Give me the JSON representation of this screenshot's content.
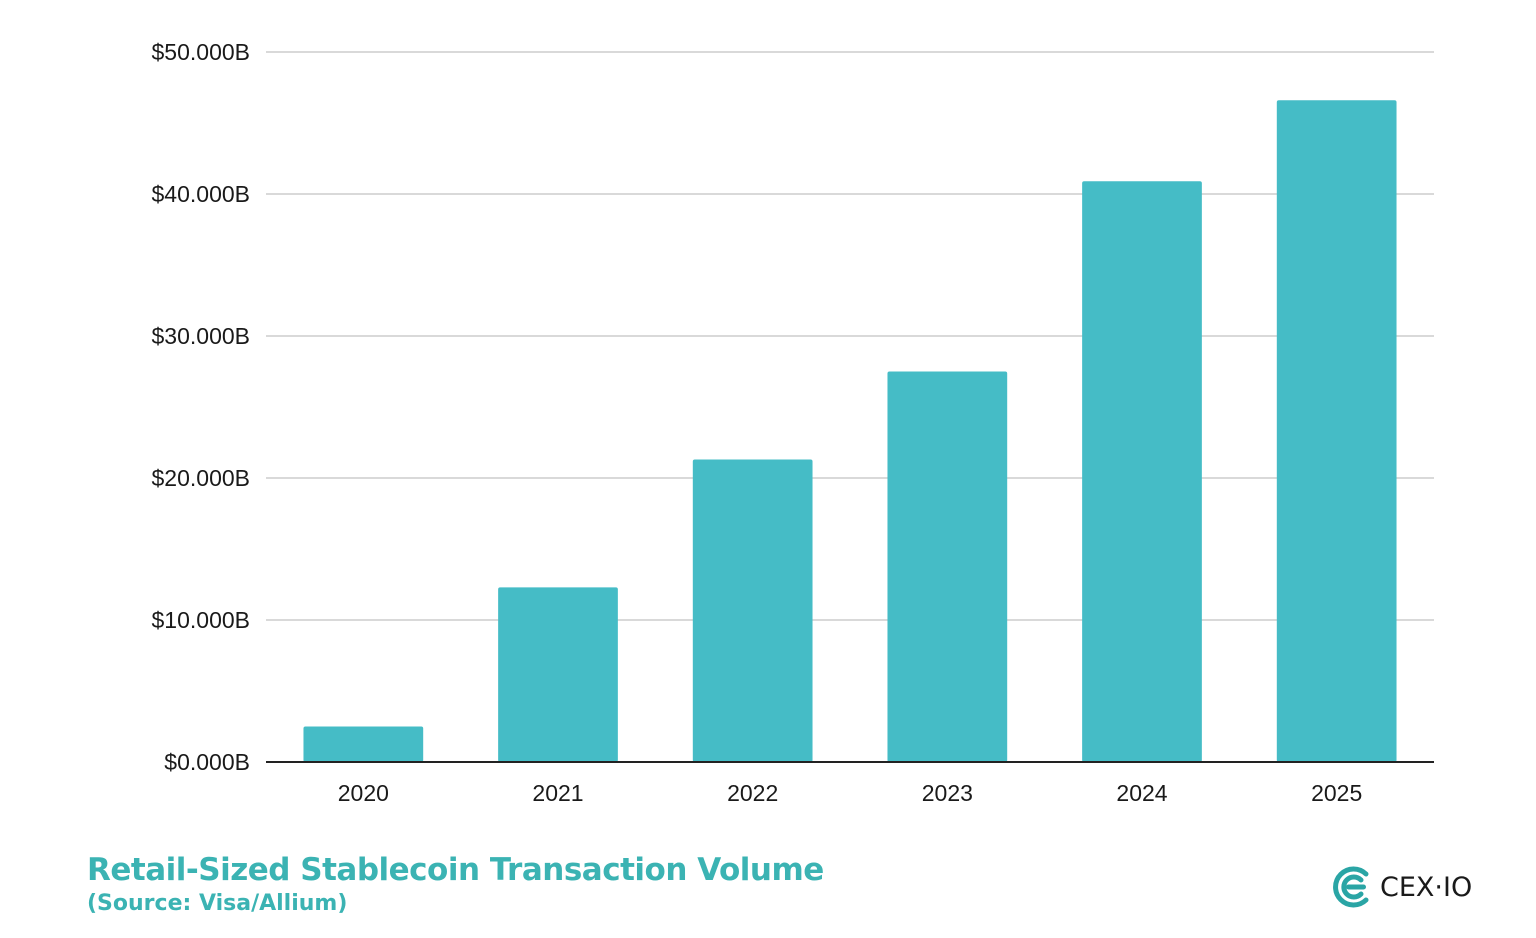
{
  "chart_data": {
    "type": "bar",
    "categories": [
      "2020",
      "2021",
      "2022",
      "2023",
      "2024",
      "2025"
    ],
    "values": [
      2.5,
      12.3,
      21.3,
      27.5,
      40.9,
      46.6
    ],
    "ylim": [
      0,
      50
    ],
    "yticks": [
      {
        "value": 0,
        "label": "$0.000B"
      },
      {
        "value": 10,
        "label": "$10.000B"
      },
      {
        "value": 20,
        "label": "$20.000B"
      },
      {
        "value": 30,
        "label": "$30.000B"
      },
      {
        "value": 40,
        "label": "$40.000B"
      },
      {
        "value": 50,
        "label": "$50.000B"
      }
    ],
    "title": "Retail-Sized Stablecoin Transaction Volume",
    "subtitle": "(Source: Visa/Allium)",
    "xlabel": "",
    "ylabel": "",
    "grid": true,
    "legend": "none"
  },
  "colors": {
    "bar": "#45bcc6",
    "grid": "#d9d9d9",
    "axis": "#222222",
    "caption": "#3bb3b3",
    "logo_mark": "#2aa5a5"
  },
  "logo": {
    "icon": "cex-io-logo-icon",
    "text": "CEX·IO"
  }
}
